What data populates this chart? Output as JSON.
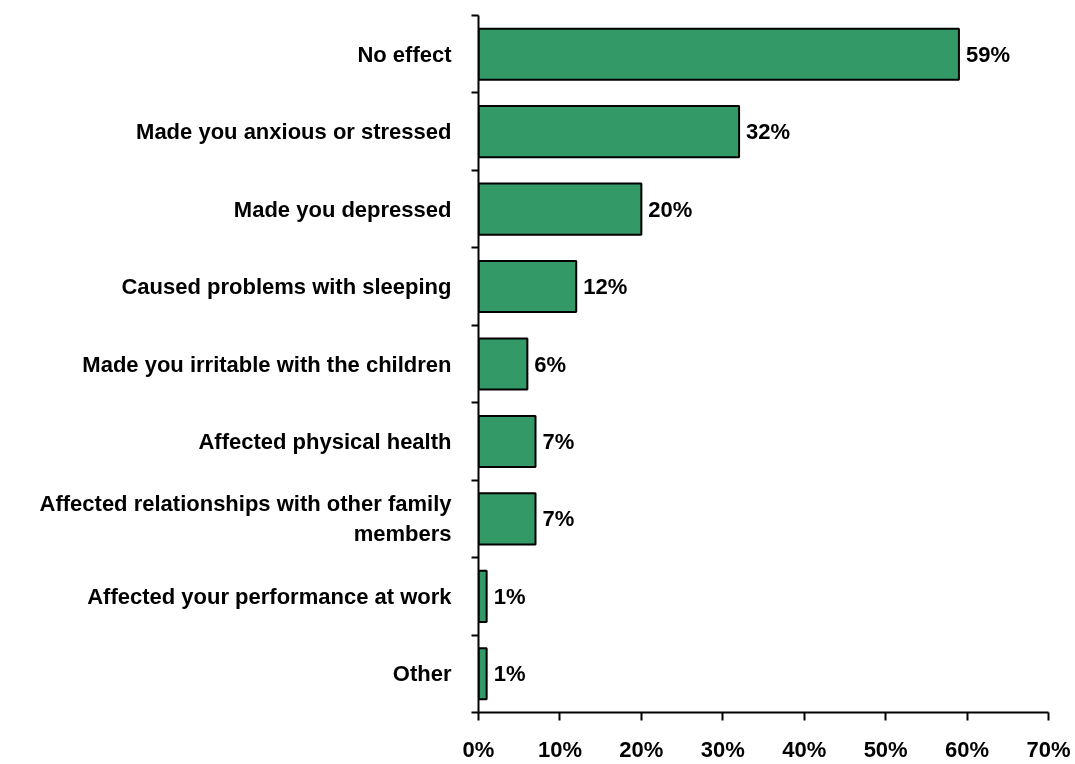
{
  "chart_data": {
    "type": "bar",
    "orientation": "horizontal",
    "categories": [
      "No effect",
      "Made you anxious or stressed",
      "Made you depressed",
      "Caused problems with sleeping",
      "Made you irritable with the children",
      "Affected physical health",
      "Affected relationships with other family members",
      "Affected your performance at work",
      "Other"
    ],
    "values": [
      59,
      32,
      20,
      12,
      6,
      7,
      7,
      1,
      1
    ],
    "value_labels": [
      "59%",
      "32%",
      "20%",
      "12%",
      "6%",
      "7%",
      "7%",
      "1%",
      "1%"
    ],
    "color": "#339966",
    "xlim": [
      0,
      70
    ],
    "xticks": [
      {
        "value": 0,
        "label": "0%"
      },
      {
        "value": 10,
        "label": "10%"
      },
      {
        "value": 20,
        "label": "20%"
      },
      {
        "value": 30,
        "label": "30%"
      },
      {
        "value": 40,
        "label": "40%"
      },
      {
        "value": 50,
        "label": "50%"
      },
      {
        "value": 60,
        "label": "60%"
      },
      {
        "value": 70,
        "label": "70%"
      }
    ],
    "grid": false
  }
}
